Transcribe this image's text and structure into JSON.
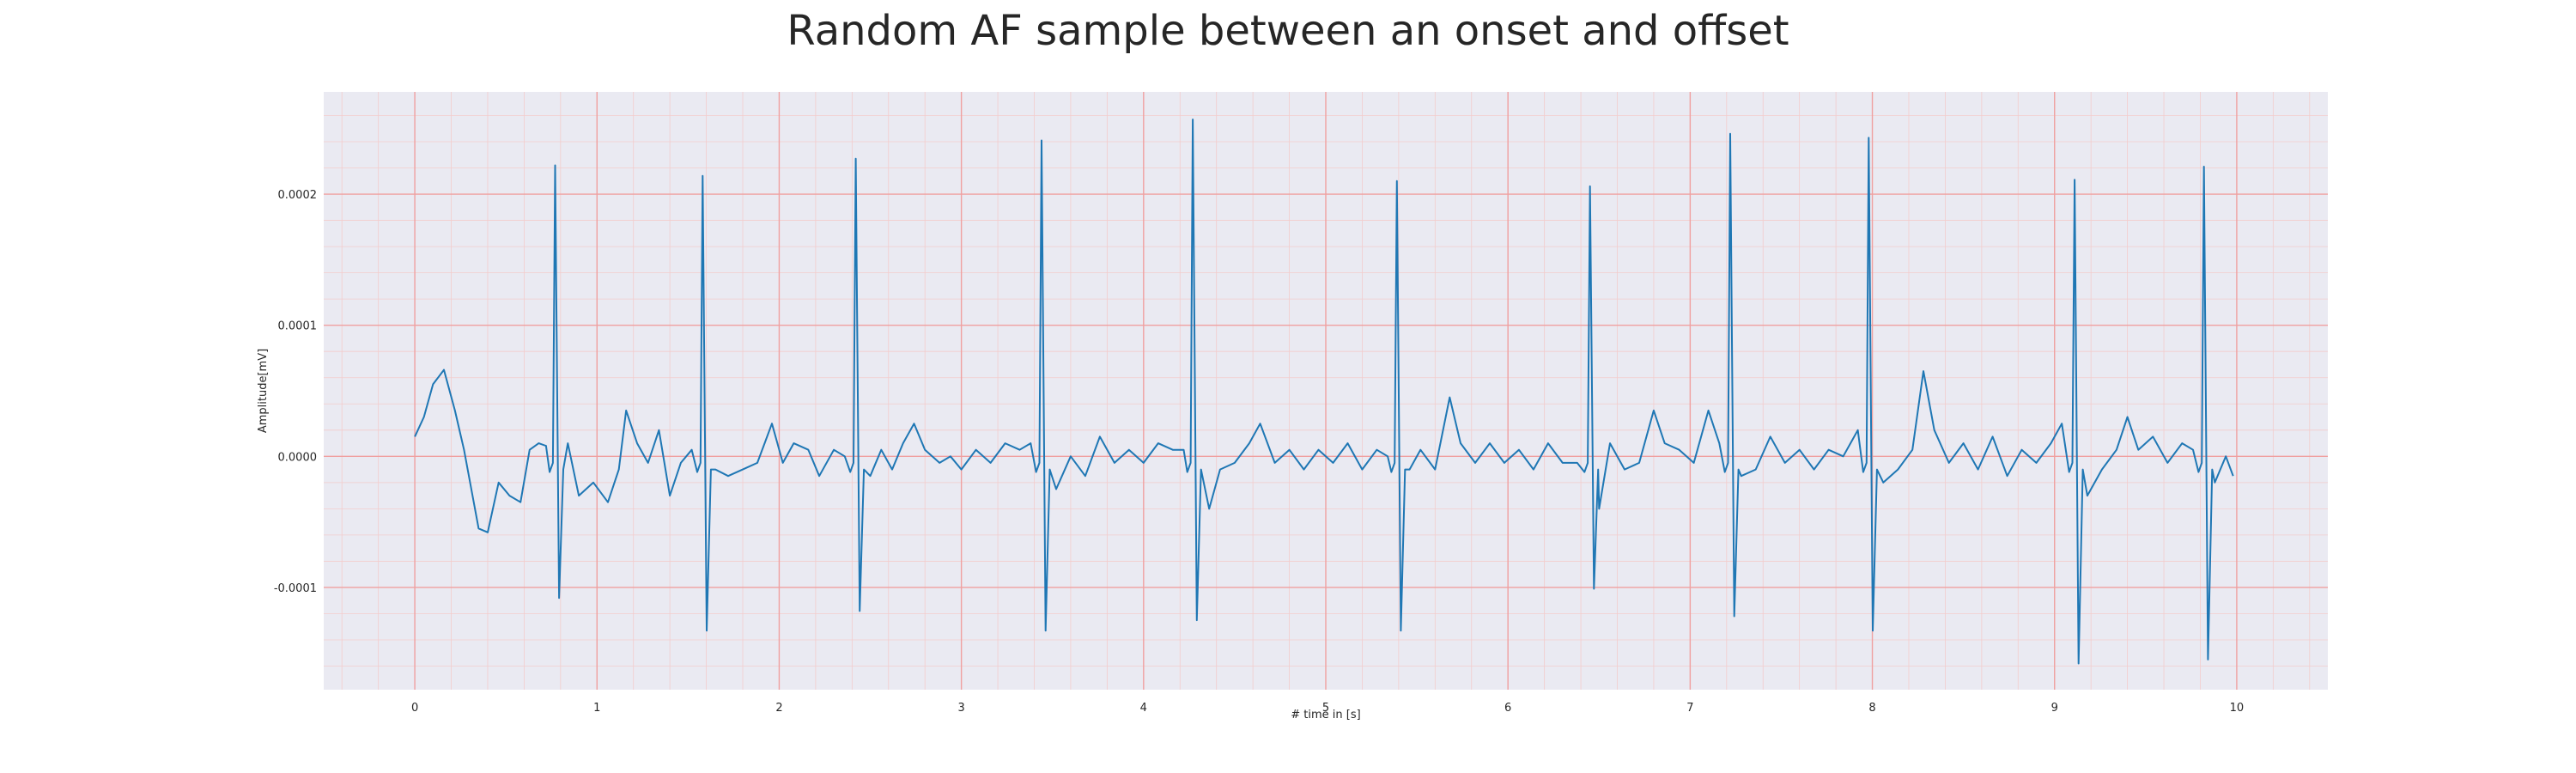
{
  "chart_data": {
    "type": "line",
    "title": "Random AF sample between an onset and offset",
    "xlabel": "# time in [s]",
    "ylabel": "Amplitude[mV]",
    "xlim": [
      -0.5,
      10.5
    ],
    "ylim": [
      -0.000178,
      0.000278
    ],
    "xticks": [
      0,
      1,
      2,
      3,
      4,
      5,
      6,
      7,
      8,
      9,
      10
    ],
    "xtick_labels": [
      "0",
      "1",
      "2",
      "3",
      "4",
      "5",
      "6",
      "7",
      "8",
      "9",
      "10"
    ],
    "yticks": [
      -0.0001,
      0.0,
      0.0001,
      0.0002
    ],
    "ytick_labels": [
      "-0.0001",
      "0.0000",
      "0.0001",
      "0.0002"
    ],
    "grid": true,
    "background_color": "#eaeaf2",
    "grid_major_color": "#f0a0a0",
    "grid_minor_color": "#f3cccc",
    "series": [
      {
        "color": "#1f77b4",
        "x_start": 0.0,
        "x_end": 9.98,
        "r_peaks": [
          {
            "t": 0.77,
            "peak": 0.000222,
            "trough": -0.000108
          },
          {
            "t": 1.58,
            "peak": 0.000214,
            "trough": -0.000133
          },
          {
            "t": 2.42,
            "peak": 0.000227,
            "trough": -0.000118
          },
          {
            "t": 3.44,
            "peak": 0.000241,
            "trough": -0.000133
          },
          {
            "t": 4.27,
            "peak": 0.000257,
            "trough": -0.000125
          },
          {
            "t": 5.39,
            "peak": 0.00021,
            "trough": -0.000133
          },
          {
            "t": 6.45,
            "peak": 0.000206,
            "trough": -0.000101
          },
          {
            "t": 7.22,
            "peak": 0.000246,
            "trough": -0.000122
          },
          {
            "t": 7.98,
            "peak": 0.000243,
            "trough": -0.000133
          },
          {
            "t": 9.11,
            "peak": 0.000211,
            "trough": -0.000158
          },
          {
            "t": 9.82,
            "peak": 0.000221,
            "trough": -0.000155
          }
        ],
        "baseline": [
          [
            0.0,
            1.5e-05
          ],
          [
            0.05,
            3e-05
          ],
          [
            0.1,
            5.5e-05
          ],
          [
            0.16,
            6.6e-05
          ],
          [
            0.22,
            3.5e-05
          ],
          [
            0.27,
            5e-06
          ],
          [
            0.31,
            -2.5e-05
          ],
          [
            0.35,
            -5.5e-05
          ],
          [
            0.4,
            -5.8e-05
          ],
          [
            0.46,
            -2e-05
          ],
          [
            0.52,
            -3e-05
          ],
          [
            0.58,
            -3.5e-05
          ],
          [
            0.63,
            5e-06
          ],
          [
            0.68,
            1e-05
          ],
          [
            0.72,
            8e-06
          ],
          [
            0.84,
            1e-05
          ],
          [
            0.9,
            -3e-05
          ],
          [
            0.98,
            -2e-05
          ],
          [
            1.06,
            -3.5e-05
          ],
          [
            1.12,
            -1e-05
          ],
          [
            1.16,
            3.5e-05
          ],
          [
            1.22,
            1e-05
          ],
          [
            1.28,
            -5e-06
          ],
          [
            1.34,
            2e-05
          ],
          [
            1.4,
            -3e-05
          ],
          [
            1.46,
            -5e-06
          ],
          [
            1.52,
            5e-06
          ],
          [
            1.65,
            -1e-05
          ],
          [
            1.72,
            -1.5e-05
          ],
          [
            1.8,
            -1e-05
          ],
          [
            1.88,
            -5e-06
          ],
          [
            1.96,
            2.5e-05
          ],
          [
            2.02,
            -5e-06
          ],
          [
            2.08,
            1e-05
          ],
          [
            2.16,
            5e-06
          ],
          [
            2.22,
            -1.5e-05
          ],
          [
            2.3,
            5e-06
          ],
          [
            2.36,
            0.0
          ],
          [
            2.5,
            -1.5e-05
          ],
          [
            2.56,
            5e-06
          ],
          [
            2.62,
            -1e-05
          ],
          [
            2.68,
            1e-05
          ],
          [
            2.74,
            2.5e-05
          ],
          [
            2.8,
            5e-06
          ],
          [
            2.88,
            -5e-06
          ],
          [
            2.94,
            0.0
          ],
          [
            3.0,
            -1e-05
          ],
          [
            3.08,
            5e-06
          ],
          [
            3.16,
            -5e-06
          ],
          [
            3.24,
            1e-05
          ],
          [
            3.32,
            5e-06
          ],
          [
            3.38,
            1e-05
          ],
          [
            3.52,
            -2.5e-05
          ],
          [
            3.6,
            0.0
          ],
          [
            3.68,
            -1.5e-05
          ],
          [
            3.76,
            1.5e-05
          ],
          [
            3.84,
            -5e-06
          ],
          [
            3.92,
            5e-06
          ],
          [
            4.0,
            -5e-06
          ],
          [
            4.08,
            1e-05
          ],
          [
            4.16,
            5e-06
          ],
          [
            4.22,
            5e-06
          ],
          [
            4.36,
            -4e-05
          ],
          [
            4.42,
            -1e-05
          ],
          [
            4.5,
            -5e-06
          ],
          [
            4.58,
            1e-05
          ],
          [
            4.64,
            2.5e-05
          ],
          [
            4.72,
            -5e-06
          ],
          [
            4.8,
            5e-06
          ],
          [
            4.88,
            -1e-05
          ],
          [
            4.96,
            5e-06
          ],
          [
            5.04,
            -5e-06
          ],
          [
            5.12,
            1e-05
          ],
          [
            5.2,
            -1e-05
          ],
          [
            5.28,
            5e-06
          ],
          [
            5.34,
            0.0
          ],
          [
            5.46,
            -1e-05
          ],
          [
            5.52,
            5e-06
          ],
          [
            5.6,
            -1e-05
          ],
          [
            5.68,
            4.5e-05
          ],
          [
            5.74,
            1e-05
          ],
          [
            5.82,
            -5e-06
          ],
          [
            5.9,
            1e-05
          ],
          [
            5.98,
            -5e-06
          ],
          [
            6.06,
            5e-06
          ],
          [
            6.14,
            -1e-05
          ],
          [
            6.22,
            1e-05
          ],
          [
            6.3,
            -5e-06
          ],
          [
            6.38,
            -5e-06
          ],
          [
            6.5,
            -4e-05
          ],
          [
            6.56,
            1e-05
          ],
          [
            6.64,
            -1e-05
          ],
          [
            6.72,
            -5e-06
          ],
          [
            6.8,
            3.5e-05
          ],
          [
            6.86,
            1e-05
          ],
          [
            6.94,
            5e-06
          ],
          [
            7.02,
            -5e-06
          ],
          [
            7.1,
            3.5e-05
          ],
          [
            7.16,
            1e-05
          ],
          [
            7.28,
            -1.5e-05
          ],
          [
            7.36,
            -1e-05
          ],
          [
            7.44,
            1.5e-05
          ],
          [
            7.52,
            -5e-06
          ],
          [
            7.6,
            5e-06
          ],
          [
            7.68,
            -1e-05
          ],
          [
            7.76,
            5e-06
          ],
          [
            7.84,
            0.0
          ],
          [
            7.92,
            2e-05
          ],
          [
            8.06,
            -2e-05
          ],
          [
            8.14,
            -1e-05
          ],
          [
            8.22,
            5e-06
          ],
          [
            8.28,
            6.5e-05
          ],
          [
            8.34,
            2e-05
          ],
          [
            8.42,
            -5e-06
          ],
          [
            8.5,
            1e-05
          ],
          [
            8.58,
            -1e-05
          ],
          [
            8.66,
            1.5e-05
          ],
          [
            8.74,
            -1.5e-05
          ],
          [
            8.82,
            5e-06
          ],
          [
            8.9,
            -5e-06
          ],
          [
            8.98,
            1e-05
          ],
          [
            9.04,
            2.5e-05
          ],
          [
            9.18,
            -3e-05
          ],
          [
            9.26,
            -1e-05
          ],
          [
            9.34,
            5e-06
          ],
          [
            9.4,
            3e-05
          ],
          [
            9.46,
            5e-06
          ],
          [
            9.54,
            1.5e-05
          ],
          [
            9.62,
            -5e-06
          ],
          [
            9.7,
            1e-05
          ],
          [
            9.76,
            5e-06
          ],
          [
            9.88,
            -2e-05
          ],
          [
            9.94,
            0.0
          ],
          [
            9.98,
            -1.5e-05
          ]
        ]
      }
    ]
  }
}
